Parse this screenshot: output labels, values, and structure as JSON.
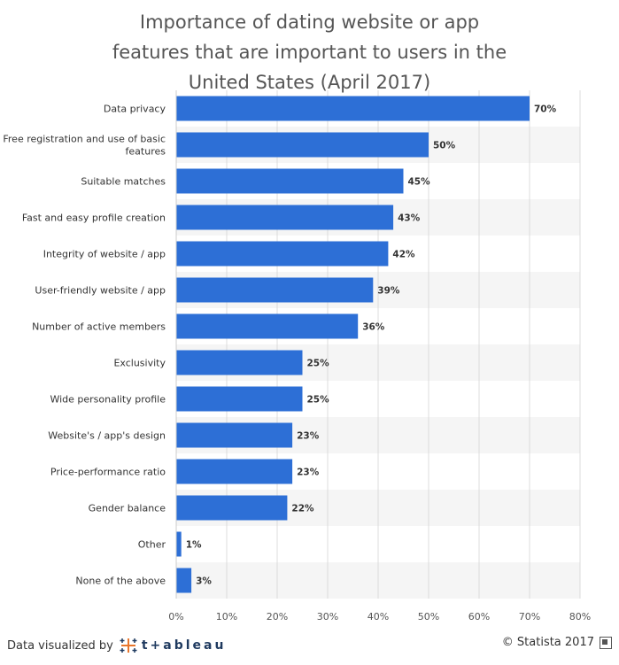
{
  "chart_data": {
    "type": "bar",
    "orientation": "horizontal",
    "title_lines": [
      "Importance of dating website or app",
      "features that are important to users in the",
      "United States (April 2017)"
    ],
    "categories": [
      [
        "Data privacy"
      ],
      [
        "Free registration and use of basic",
        "features"
      ],
      [
        "Suitable matches"
      ],
      [
        "Fast and easy profile creation"
      ],
      [
        "Integrity of website / app"
      ],
      [
        "User-friendly website / app"
      ],
      [
        "Number of active members"
      ],
      [
        "Exclusivity"
      ],
      [
        "Wide personality profile"
      ],
      [
        "Website's / app's design"
      ],
      [
        "Price-performance ratio"
      ],
      [
        "Gender balance"
      ],
      [
        "Other"
      ],
      [
        "None of the above"
      ]
    ],
    "values": [
      70,
      50,
      45,
      43,
      42,
      39,
      36,
      25,
      25,
      23,
      23,
      22,
      1,
      3
    ],
    "value_labels": [
      "70%",
      "50%",
      "45%",
      "43%",
      "42%",
      "39%",
      "36%",
      "25%",
      "25%",
      "23%",
      "23%",
      "22%",
      "1%",
      "3%"
    ],
    "xlim": [
      0,
      80
    ],
    "xticks": [
      0,
      10,
      20,
      30,
      40,
      50,
      60,
      70,
      80
    ],
    "xtick_labels": [
      "0%",
      "10%",
      "20%",
      "30%",
      "40%",
      "50%",
      "60%",
      "70%",
      "80%"
    ],
    "grid": true,
    "bar_color": "#2d6fd6",
    "alt_row_color": "#f5f5f5"
  },
  "footer": {
    "left_text": "Data visualized by",
    "tableau_word": "t+ableau",
    "right_text": "© Statista 2017"
  }
}
